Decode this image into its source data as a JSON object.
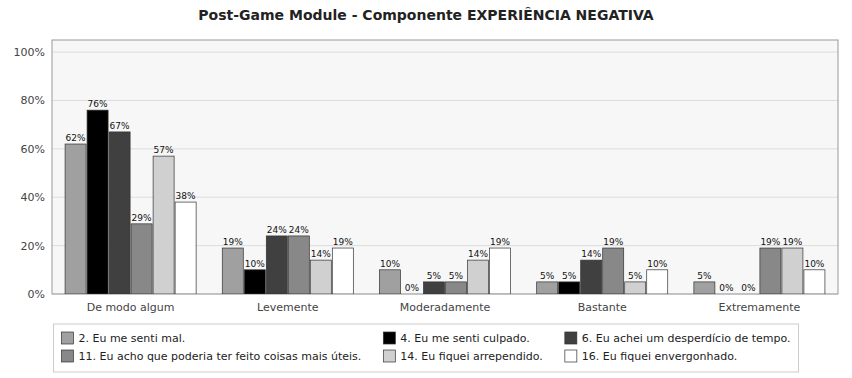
{
  "chart_data": {
    "type": "bar",
    "title": "Post-Game Module - Componente EXPERIÊNCIA NEGATIVA",
    "categories": [
      "De modo algum",
      "Levemente",
      "Moderadamente",
      "Bastante",
      "Extremamente"
    ],
    "series": [
      {
        "name": "2. Eu me senti mal.",
        "color": "#a0a0a0",
        "values": [
          62,
          19,
          10,
          5,
          5
        ],
        "value_labels": [
          "62%",
          "19%",
          "10%",
          "5%",
          "5%"
        ]
      },
      {
        "name": "4. Eu me senti culpado.",
        "color": "#000000",
        "values": [
          76,
          10,
          0,
          5,
          0
        ],
        "value_labels": [
          "76%",
          "10%",
          "0%",
          "5%",
          "0%"
        ]
      },
      {
        "name": "6. Eu achei um desperdício de tempo.",
        "color": "#404040",
        "values": [
          67,
          24,
          5,
          14,
          0
        ],
        "value_labels": [
          "67%",
          "24%",
          "5%",
          "14%",
          "0%"
        ]
      },
      {
        "name": "11. Eu acho que poderia ter feito coisas mais úteis.",
        "color": "#888888",
        "values": [
          29,
          24,
          5,
          19,
          19
        ],
        "value_labels": [
          "29%",
          "24%",
          "5%",
          "19%",
          "19%"
        ]
      },
      {
        "name": "14. Eu fiquei arrependido.",
        "color": "#d0d0d0",
        "values": [
          57,
          14,
          14,
          5,
          19
        ],
        "value_labels": [
          "57%",
          "14%",
          "14%",
          "5%",
          "19%"
        ]
      },
      {
        "name": "16. Eu fiquei envergonhado.",
        "color": "#ffffff",
        "values": [
          38,
          19,
          19,
          10,
          10
        ],
        "value_labels": [
          "38%",
          "19%",
          "19%",
          "10%",
          "10%"
        ]
      }
    ],
    "ylim": [
      0,
      105
    ],
    "yticks": [
      {
        "value": 0,
        "label": "0%"
      },
      {
        "value": 20,
        "label": "20%"
      },
      {
        "value": 40,
        "label": "40%"
      },
      {
        "value": 60,
        "label": "60%"
      },
      {
        "value": 80,
        "label": "80%"
      },
      {
        "value": 100,
        "label": "100%"
      }
    ],
    "grid": true,
    "legend": "bottom",
    "data_labels": true
  }
}
